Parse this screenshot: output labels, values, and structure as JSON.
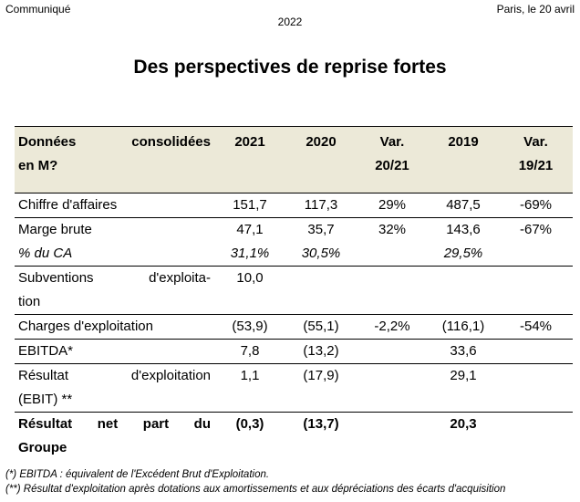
{
  "header": {
    "left": "Communiqué",
    "right": "Paris, le 20 avril",
    "year": "2022"
  },
  "title": "Des perspectives de reprise fortes",
  "table": {
    "head": {
      "label_line1_a": "Données",
      "label_line1_b": "consolidées",
      "label_line2": "en M?",
      "col1": "2021",
      "col2": "2020",
      "col3_line1": "Var.",
      "col3_line2": "20/21",
      "col4": "2019",
      "col5_line1": "Var.",
      "col5_line2": "19/21"
    },
    "rows": [
      {
        "label": "Chiffre d'affaires",
        "v2021": "151,7",
        "v2020": "117,3",
        "var2021": "29%",
        "v2019": "487,5",
        "var1921": "-69%"
      },
      {
        "label": "Marge brute",
        "v2021": "47,1",
        "v2020": "35,7",
        "var2021": "32%",
        "v2019": "143,6",
        "var1921": "-67%"
      },
      {
        "label": "% du CA",
        "v2021": "31,1%",
        "v2020": "30,5%",
        "var2021": "",
        "v2019": "29,5%",
        "var1921": ""
      },
      {
        "label_a": "Subventions",
        "label_b": "d'exploita-",
        "label_line2": "tion",
        "v2021": "10,0"
      },
      {
        "label": "Charges d'exploitation",
        "v2021": "(53,9)",
        "v2020": "(55,1)",
        "var2021": "-2,2%",
        "v2019": "(116,1)",
        "var1921": "-54%"
      },
      {
        "label": "EBITDA*",
        "v2021": "7,8",
        "v2020": "(13,2)",
        "var2021": "",
        "v2019": "33,6",
        "var1921": ""
      },
      {
        "label_a": "Résultat",
        "label_b": "d'exploitation",
        "label_line2": "(EBIT) **",
        "v2021": "1,1",
        "v2020": "(17,9)",
        "v2019": "29,1"
      },
      {
        "label_a": "Résultat",
        "label_b": "net",
        "label_c": "part",
        "label_d": "du",
        "label_line2": "Groupe",
        "v2021": "(0,3)",
        "v2020": "(13,7)",
        "v2019": "20,3"
      }
    ]
  },
  "notes": {
    "n1": "(*) EBITDA : équivalent de l'Excédent Brut d'Exploitation.",
    "n2": "(**) Résultat d'exploitation après dotations aux amortissements et aux dépréciations des écarts d'acquisition"
  }
}
